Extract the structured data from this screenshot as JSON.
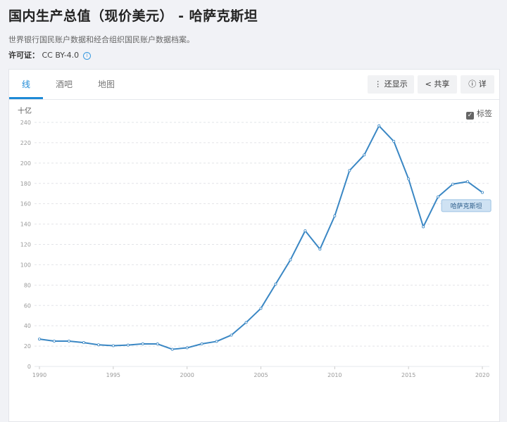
{
  "header": {
    "title": "国内生产总值（现价美元） - 哈萨克斯坦",
    "description": "世界银行国民账户数据和经合组织国民账户数据档案。",
    "license_label": "许可证：",
    "license_value": "CC BY-4.0"
  },
  "tabs": [
    {
      "label": "线"
    },
    {
      "label": "酒吧"
    },
    {
      "label": "地图"
    }
  ],
  "toolbar": {
    "show_label": "还显示",
    "share_label": "共享",
    "details_label": "详"
  },
  "labels_checkbox": {
    "label": "标签",
    "checked": true
  },
  "chart_data": {
    "type": "line",
    "ylabel": "十亿",
    "ylim": [
      0,
      240
    ],
    "yticks": [
      0,
      20,
      40,
      60,
      80,
      100,
      120,
      140,
      160,
      180,
      200,
      220,
      240
    ],
    "xticks": [
      1990,
      1995,
      2000,
      2005,
      2010,
      2015,
      2020
    ],
    "grid": true,
    "color": "#3a87c4",
    "series": [
      {
        "name": "哈萨克斯坦",
        "x": [
          1990,
          1991,
          1992,
          1993,
          1994,
          1995,
          1996,
          1997,
          1998,
          1999,
          2000,
          2001,
          2002,
          2003,
          2004,
          2005,
          2006,
          2007,
          2008,
          2009,
          2010,
          2011,
          2012,
          2013,
          2014,
          2015,
          2016,
          2017,
          2018,
          2019,
          2020
        ],
        "values": [
          26.9,
          24.9,
          24.9,
          23.4,
          21.3,
          20.4,
          21.0,
          22.2,
          22.1,
          16.9,
          18.3,
          22.2,
          24.6,
          30.8,
          43.2,
          57.1,
          81.0,
          104.8,
          133.4,
          115.3,
          148.0,
          192.6,
          208.0,
          236.6,
          221.4,
          184.4,
          137.3,
          166.8,
          179.3,
          181.7,
          171.1
        ]
      }
    ]
  }
}
